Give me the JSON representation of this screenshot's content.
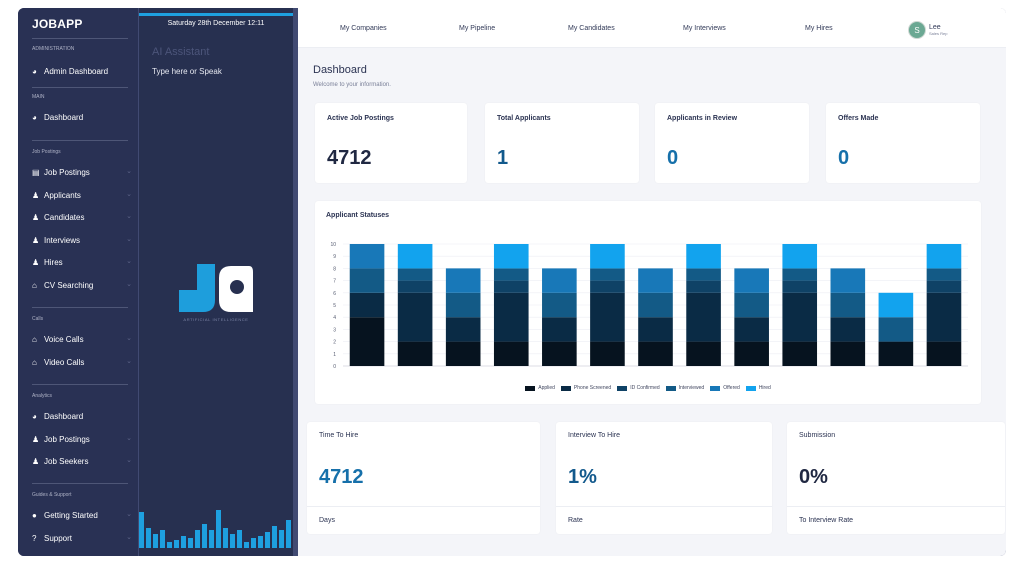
{
  "sidebar": {
    "brand": "JOBAPP",
    "sections": {
      "administration": "ADMINISTRATION",
      "main": "MAIN",
      "job_postings": "Job Postings",
      "calls": "Calls",
      "analytics": "Analytics",
      "guides": "Guides & Support"
    },
    "items": {
      "admin_dashboard": "Admin Dashboard",
      "dashboard": "Dashboard",
      "job_postings": "Job Postings",
      "applicants": "Applicants",
      "candidates": "Candidates",
      "interviews": "Interviews",
      "hires": "Hires",
      "cv_searching": "CV Searching",
      "voice_calls": "Voice Calls",
      "video_calls": "Video Calls",
      "analytics_dashboard": "Dashboard",
      "analytics_job_postings": "Job Postings",
      "job_seekers": "Job Seekers",
      "getting_started": "Getting Started",
      "support": "Support"
    },
    "icons": {
      "dashboard": "speedometer-icon",
      "document": "document-icon",
      "person": "person-icon",
      "bank": "bank-icon",
      "info": "info-icon",
      "question": "question-icon",
      "chevron": "chevron-down-icon"
    }
  },
  "assistant": {
    "date": "Saturday 28th December 12:11",
    "title": "AI Assistant",
    "prompt": "Type here or Speak",
    "logo_caption": "ARTIFICIAL INTELLIGENCE",
    "logo_text": "JA",
    "accent": "#1ea0e0"
  },
  "topnav": {
    "items": [
      "My Companies",
      "My Pipeline",
      "My Candidates",
      "My Interviews",
      "My Hires"
    ],
    "user_name": "Lee",
    "user_role": "Sales Rep",
    "user_initial": "S"
  },
  "header": {
    "title": "Dashboard",
    "subtitle": "Welcome to your information."
  },
  "stats": [
    {
      "label": "Active Job Postings",
      "value": "4712",
      "color": "#202842"
    },
    {
      "label": "Total Applicants",
      "value": "1",
      "color": "#12598c"
    },
    {
      "label": "Applicants in Review",
      "value": "0",
      "color": "#1670aa"
    },
    {
      "label": "Offers Made",
      "value": "0",
      "color": "#1670aa"
    }
  ],
  "chart_title": "Applicant Statuses",
  "chart_data": {
    "type": "bar",
    "stacked": true,
    "title": "Applicant Statuses",
    "ylim": [
      0,
      10
    ],
    "yticks": [
      0,
      1,
      2,
      3,
      4,
      5,
      6,
      7,
      8,
      9,
      10
    ],
    "categories": [
      "",
      "",
      "",
      "",
      "",
      "",
      "",
      "",
      "",
      "",
      "",
      "",
      ""
    ],
    "legend_position": "bottom",
    "grid": true,
    "series": [
      {
        "name": "Applied",
        "color": "#06131f",
        "values": [
          4,
          2,
          2,
          2,
          2,
          2,
          2,
          2,
          2,
          2,
          2,
          2,
          2
        ]
      },
      {
        "name": "Phone Screened",
        "color": "#0a2b45",
        "values": [
          2,
          4,
          2,
          4,
          2,
          4,
          2,
          4,
          2,
          4,
          2,
          0,
          4
        ]
      },
      {
        "name": "ID Confirmed",
        "color": "#0f4266",
        "values": [
          0,
          1,
          0,
          1,
          0,
          1,
          0,
          1,
          0,
          1,
          0,
          0,
          1
        ]
      },
      {
        "name": "Interviewed",
        "color": "#135a86",
        "values": [
          2,
          1,
          2,
          1,
          2,
          1,
          2,
          1,
          2,
          1,
          2,
          2,
          1
        ]
      },
      {
        "name": "Offered",
        "color": "#1878b8",
        "values": [
          2,
          0,
          2,
          0,
          2,
          0,
          2,
          0,
          2,
          0,
          2,
          0,
          0
        ]
      },
      {
        "name": "Hired",
        "color": "#12a3ee",
        "values": [
          0,
          2,
          0,
          2,
          0,
          2,
          0,
          2,
          0,
          2,
          0,
          2,
          2
        ]
      }
    ]
  },
  "metrics": [
    {
      "label": "Time To Hire",
      "value": "4712",
      "foot": "Days",
      "color": "#1670aa"
    },
    {
      "label": "Interview To Hire",
      "value": "1%",
      "foot": "Rate",
      "color": "#12598c"
    },
    {
      "label": "Submission",
      "value": "0%",
      "foot": "To Interview Rate",
      "color": "#202842"
    }
  ]
}
